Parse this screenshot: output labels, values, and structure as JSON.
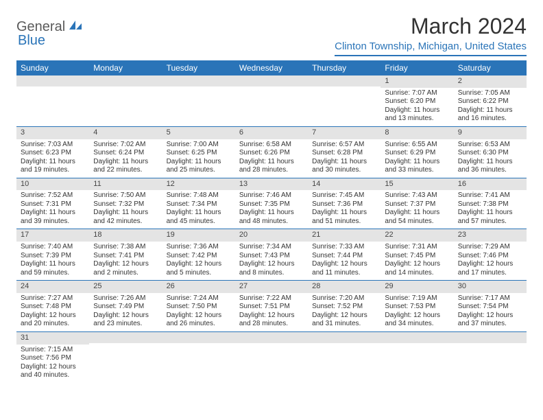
{
  "logo": {
    "general": "General",
    "blue": "Blue"
  },
  "title": "March 2024",
  "location": "Clinton Township, Michigan, United States",
  "colors": {
    "header_bg": "#2a74b8",
    "header_text": "#ffffff",
    "daynum_bg": "#e4e4e4",
    "border": "#2a74b8"
  },
  "dayNames": [
    "Sunday",
    "Monday",
    "Tuesday",
    "Wednesday",
    "Thursday",
    "Friday",
    "Saturday"
  ],
  "weeks": [
    [
      {
        "empty": true
      },
      {
        "empty": true
      },
      {
        "empty": true
      },
      {
        "empty": true
      },
      {
        "empty": true
      },
      {
        "day": "1",
        "sunrise": "Sunrise: 7:07 AM",
        "sunset": "Sunset: 6:20 PM",
        "daylight": "Daylight: 11 hours and 13 minutes."
      },
      {
        "day": "2",
        "sunrise": "Sunrise: 7:05 AM",
        "sunset": "Sunset: 6:22 PM",
        "daylight": "Daylight: 11 hours and 16 minutes."
      }
    ],
    [
      {
        "day": "3",
        "sunrise": "Sunrise: 7:03 AM",
        "sunset": "Sunset: 6:23 PM",
        "daylight": "Daylight: 11 hours and 19 minutes."
      },
      {
        "day": "4",
        "sunrise": "Sunrise: 7:02 AM",
        "sunset": "Sunset: 6:24 PM",
        "daylight": "Daylight: 11 hours and 22 minutes."
      },
      {
        "day": "5",
        "sunrise": "Sunrise: 7:00 AM",
        "sunset": "Sunset: 6:25 PM",
        "daylight": "Daylight: 11 hours and 25 minutes."
      },
      {
        "day": "6",
        "sunrise": "Sunrise: 6:58 AM",
        "sunset": "Sunset: 6:26 PM",
        "daylight": "Daylight: 11 hours and 28 minutes."
      },
      {
        "day": "7",
        "sunrise": "Sunrise: 6:57 AM",
        "sunset": "Sunset: 6:28 PM",
        "daylight": "Daylight: 11 hours and 30 minutes."
      },
      {
        "day": "8",
        "sunrise": "Sunrise: 6:55 AM",
        "sunset": "Sunset: 6:29 PM",
        "daylight": "Daylight: 11 hours and 33 minutes."
      },
      {
        "day": "9",
        "sunrise": "Sunrise: 6:53 AM",
        "sunset": "Sunset: 6:30 PM",
        "daylight": "Daylight: 11 hours and 36 minutes."
      }
    ],
    [
      {
        "day": "10",
        "sunrise": "Sunrise: 7:52 AM",
        "sunset": "Sunset: 7:31 PM",
        "daylight": "Daylight: 11 hours and 39 minutes."
      },
      {
        "day": "11",
        "sunrise": "Sunrise: 7:50 AM",
        "sunset": "Sunset: 7:32 PM",
        "daylight": "Daylight: 11 hours and 42 minutes."
      },
      {
        "day": "12",
        "sunrise": "Sunrise: 7:48 AM",
        "sunset": "Sunset: 7:34 PM",
        "daylight": "Daylight: 11 hours and 45 minutes."
      },
      {
        "day": "13",
        "sunrise": "Sunrise: 7:46 AM",
        "sunset": "Sunset: 7:35 PM",
        "daylight": "Daylight: 11 hours and 48 minutes."
      },
      {
        "day": "14",
        "sunrise": "Sunrise: 7:45 AM",
        "sunset": "Sunset: 7:36 PM",
        "daylight": "Daylight: 11 hours and 51 minutes."
      },
      {
        "day": "15",
        "sunrise": "Sunrise: 7:43 AM",
        "sunset": "Sunset: 7:37 PM",
        "daylight": "Daylight: 11 hours and 54 minutes."
      },
      {
        "day": "16",
        "sunrise": "Sunrise: 7:41 AM",
        "sunset": "Sunset: 7:38 PM",
        "daylight": "Daylight: 11 hours and 57 minutes."
      }
    ],
    [
      {
        "day": "17",
        "sunrise": "Sunrise: 7:40 AM",
        "sunset": "Sunset: 7:39 PM",
        "daylight": "Daylight: 11 hours and 59 minutes."
      },
      {
        "day": "18",
        "sunrise": "Sunrise: 7:38 AM",
        "sunset": "Sunset: 7:41 PM",
        "daylight": "Daylight: 12 hours and 2 minutes."
      },
      {
        "day": "19",
        "sunrise": "Sunrise: 7:36 AM",
        "sunset": "Sunset: 7:42 PM",
        "daylight": "Daylight: 12 hours and 5 minutes."
      },
      {
        "day": "20",
        "sunrise": "Sunrise: 7:34 AM",
        "sunset": "Sunset: 7:43 PM",
        "daylight": "Daylight: 12 hours and 8 minutes."
      },
      {
        "day": "21",
        "sunrise": "Sunrise: 7:33 AM",
        "sunset": "Sunset: 7:44 PM",
        "daylight": "Daylight: 12 hours and 11 minutes."
      },
      {
        "day": "22",
        "sunrise": "Sunrise: 7:31 AM",
        "sunset": "Sunset: 7:45 PM",
        "daylight": "Daylight: 12 hours and 14 minutes."
      },
      {
        "day": "23",
        "sunrise": "Sunrise: 7:29 AM",
        "sunset": "Sunset: 7:46 PM",
        "daylight": "Daylight: 12 hours and 17 minutes."
      }
    ],
    [
      {
        "day": "24",
        "sunrise": "Sunrise: 7:27 AM",
        "sunset": "Sunset: 7:48 PM",
        "daylight": "Daylight: 12 hours and 20 minutes."
      },
      {
        "day": "25",
        "sunrise": "Sunrise: 7:26 AM",
        "sunset": "Sunset: 7:49 PM",
        "daylight": "Daylight: 12 hours and 23 minutes."
      },
      {
        "day": "26",
        "sunrise": "Sunrise: 7:24 AM",
        "sunset": "Sunset: 7:50 PM",
        "daylight": "Daylight: 12 hours and 26 minutes."
      },
      {
        "day": "27",
        "sunrise": "Sunrise: 7:22 AM",
        "sunset": "Sunset: 7:51 PM",
        "daylight": "Daylight: 12 hours and 28 minutes."
      },
      {
        "day": "28",
        "sunrise": "Sunrise: 7:20 AM",
        "sunset": "Sunset: 7:52 PM",
        "daylight": "Daylight: 12 hours and 31 minutes."
      },
      {
        "day": "29",
        "sunrise": "Sunrise: 7:19 AM",
        "sunset": "Sunset: 7:53 PM",
        "daylight": "Daylight: 12 hours and 34 minutes."
      },
      {
        "day": "30",
        "sunrise": "Sunrise: 7:17 AM",
        "sunset": "Sunset: 7:54 PM",
        "daylight": "Daylight: 12 hours and 37 minutes."
      }
    ],
    [
      {
        "day": "31",
        "sunrise": "Sunrise: 7:15 AM",
        "sunset": "Sunset: 7:56 PM",
        "daylight": "Daylight: 12 hours and 40 minutes."
      },
      {
        "empty": true
      },
      {
        "empty": true
      },
      {
        "empty": true
      },
      {
        "empty": true
      },
      {
        "empty": true
      },
      {
        "empty": true
      }
    ]
  ]
}
